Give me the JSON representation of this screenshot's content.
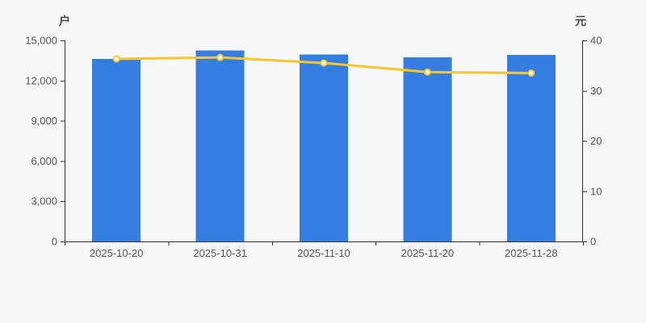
{
  "chart_data": {
    "type": "bar+line",
    "title": "",
    "categories": [
      "2025-10-20",
      "2025-10-31",
      "2025-11-10",
      "2025-11-20",
      "2025-11-28"
    ],
    "bar_series": {
      "yaxis": "left",
      "unit": "户",
      "values": [
        13600,
        14260,
        13950,
        13750,
        13920
      ]
    },
    "line_series": {
      "yaxis": "right",
      "unit": "元",
      "values": [
        36.3,
        36.6,
        35.5,
        33.7,
        33.5
      ]
    },
    "left_axis": {
      "name": "户",
      "min": 0,
      "max": 15000,
      "tick_labels": [
        "0",
        "3,000",
        "6,000",
        "9,000",
        "12,000",
        "15,000"
      ]
    },
    "right_axis": {
      "name": "元",
      "min": 0,
      "max": 40,
      "tick_labels": [
        "0",
        "10",
        "20",
        "30",
        "40"
      ]
    },
    "grid": false,
    "legend": false,
    "colors": {
      "bar": "#347ee2",
      "line": "#f9c52c",
      "marker_fill": "#ffffff",
      "axis_line": "#333333",
      "tick_label": "#55585a",
      "axis_name": "#464646",
      "background": "#f6f7f8"
    }
  }
}
